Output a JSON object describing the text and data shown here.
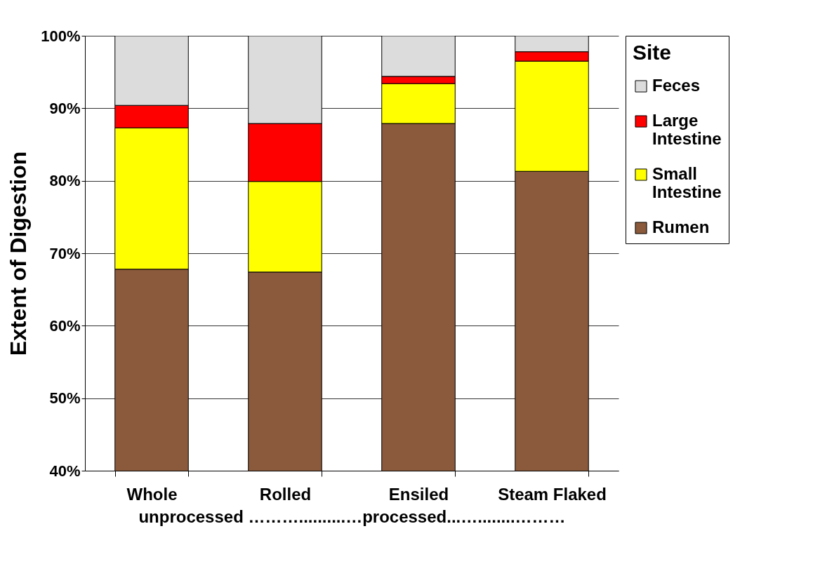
{
  "chart_data": {
    "type": "bar",
    "ylabel": "Extent of Digestion",
    "legend_title": "Site",
    "legend": "right",
    "grid": "y",
    "categories": [
      "Whole",
      "Rolled",
      "Ensiled",
      "Steam Flaked"
    ],
    "series": [
      {
        "name": "Rumen",
        "color": "#8b5a3c",
        "base": [
          0,
          0,
          0,
          0
        ],
        "values": [
          67.8,
          67.4,
          87.9,
          81.3
        ]
      },
      {
        "name": "Small Intestine",
        "color": "#ffff00",
        "base": [
          67.8,
          67.4,
          87.9,
          81.3
        ],
        "values": [
          19.5,
          12.5,
          5.5,
          15.2
        ]
      },
      {
        "name": "Large Intestine",
        "color": "#ff0000",
        "base": [
          87.3,
          79.9,
          93.4,
          96.5
        ],
        "values": [
          3.1,
          8.0,
          1.0,
          1.3
        ]
      },
      {
        "name": "Feces",
        "color": "#dcdcdc",
        "base": [
          90.4,
          87.9,
          94.4,
          97.8
        ],
        "values": [
          9.6,
          12.1,
          5.6,
          2.2
        ]
      }
    ],
    "ylim": [
      40,
      100
    ],
    "yticks": [
      {
        "value": 40,
        "label": "40%"
      },
      {
        "value": 50,
        "label": "50%"
      },
      {
        "value": 60,
        "label": "60%"
      },
      {
        "value": 70,
        "label": "70%"
      },
      {
        "value": 80,
        "label": "80%"
      },
      {
        "value": 90,
        "label": "90%"
      },
      {
        "value": 100,
        "label": "100%"
      }
    ],
    "annotations": [
      "unprocessed ………..........…processed...…........………"
    ]
  }
}
